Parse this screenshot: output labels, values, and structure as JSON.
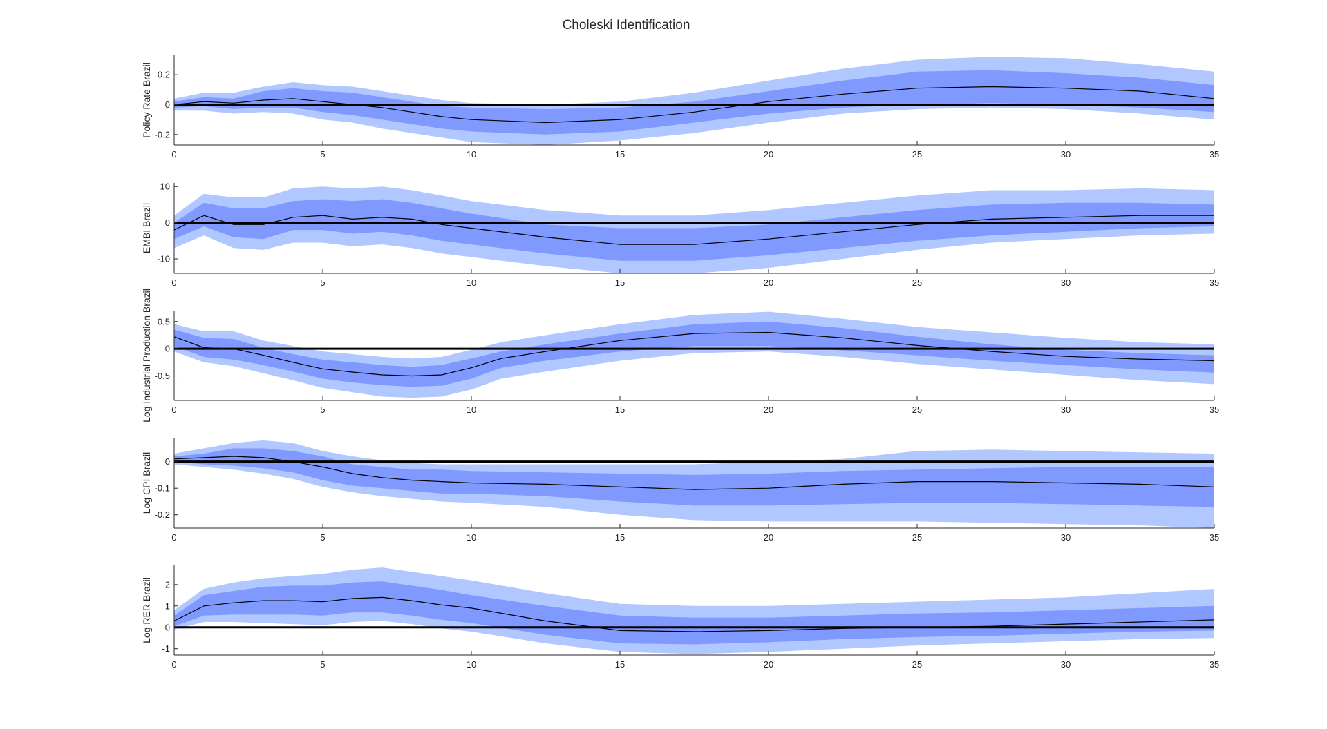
{
  "figure": {
    "title": "Choleski Identification"
  },
  "colors": {
    "band_outer": "#b0c8ff",
    "band_inner": "#7f99ff",
    "median_line": "#000000",
    "zero_line": "#000000",
    "axis": "#262626"
  },
  "chart_data": [
    {
      "type": "area",
      "ylabel": "Policy Rate Brazil",
      "xlim": [
        0,
        35
      ],
      "ylim": [
        -0.27,
        0.33
      ],
      "x_ticks": [
        0,
        5,
        10,
        15,
        20,
        25,
        30,
        35
      ],
      "y_ticks": [
        -0.2,
        0,
        0.2
      ],
      "y_tick_labels": [
        "-0.2",
        "0",
        "0.2"
      ],
      "x": [
        0,
        1,
        2,
        3,
        4,
        5,
        6,
        7,
        8,
        9,
        10,
        12.5,
        15,
        17.5,
        20,
        22.5,
        25,
        27.5,
        30,
        32.5,
        35
      ],
      "series": [
        {
          "role": "outer_upper",
          "values": [
            0.04,
            0.08,
            0.08,
            0.12,
            0.15,
            0.13,
            0.12,
            0.09,
            0.06,
            0.03,
            0.01,
            0.0,
            0.02,
            0.08,
            0.16,
            0.24,
            0.3,
            0.32,
            0.31,
            0.27,
            0.22
          ]
        },
        {
          "role": "inner_upper",
          "values": [
            0.02,
            0.05,
            0.04,
            0.09,
            0.11,
            0.09,
            0.08,
            0.05,
            0.02,
            -0.01,
            -0.02,
            -0.03,
            -0.02,
            0.02,
            0.09,
            0.16,
            0.22,
            0.23,
            0.21,
            0.18,
            0.13
          ]
        },
        {
          "role": "median",
          "values": [
            0.0,
            0.02,
            0.01,
            0.03,
            0.04,
            0.02,
            0.0,
            -0.02,
            -0.05,
            -0.08,
            -0.1,
            -0.12,
            -0.1,
            -0.05,
            0.02,
            0.07,
            0.11,
            0.12,
            0.11,
            0.09,
            0.04
          ]
        },
        {
          "role": "inner_lower",
          "values": [
            -0.02,
            -0.01,
            -0.03,
            -0.02,
            -0.02,
            -0.05,
            -0.07,
            -0.1,
            -0.13,
            -0.16,
            -0.18,
            -0.2,
            -0.18,
            -0.12,
            -0.06,
            -0.02,
            0.0,
            0.01,
            0.0,
            -0.02,
            -0.05
          ]
        },
        {
          "role": "outer_lower",
          "values": [
            -0.04,
            -0.04,
            -0.06,
            -0.05,
            -0.06,
            -0.1,
            -0.12,
            -0.16,
            -0.19,
            -0.22,
            -0.25,
            -0.27,
            -0.24,
            -0.19,
            -0.12,
            -0.06,
            -0.03,
            -0.02,
            -0.03,
            -0.06,
            -0.1
          ]
        }
      ]
    },
    {
      "type": "area",
      "ylabel": "EMBI Brazil",
      "xlim": [
        0,
        35
      ],
      "ylim": [
        -14,
        11
      ],
      "x_ticks": [
        0,
        5,
        10,
        15,
        20,
        25,
        30,
        35
      ],
      "y_ticks": [
        -10,
        0,
        10
      ],
      "y_tick_labels": [
        "-10",
        "0",
        "10"
      ],
      "x": [
        0,
        1,
        2,
        3,
        4,
        5,
        6,
        7,
        8,
        9,
        10,
        12.5,
        15,
        17.5,
        20,
        22.5,
        25,
        27.5,
        30,
        32.5,
        35
      ],
      "series": [
        {
          "role": "outer_upper",
          "values": [
            2.0,
            8.0,
            7.0,
            7.0,
            9.5,
            10.0,
            9.5,
            10.0,
            9.0,
            7.5,
            6.0,
            3.5,
            2.0,
            2.0,
            3.5,
            5.5,
            7.5,
            9.0,
            9.0,
            9.5,
            9.0
          ]
        },
        {
          "role": "inner_upper",
          "values": [
            0.0,
            5.5,
            4.0,
            4.0,
            6.0,
            6.5,
            6.0,
            6.5,
            5.5,
            4.0,
            2.5,
            -0.5,
            -1.5,
            -1.5,
            -0.5,
            1.5,
            3.5,
            5.0,
            5.5,
            5.5,
            5.0
          ]
        },
        {
          "role": "median",
          "values": [
            -2.0,
            2.0,
            -0.5,
            -0.5,
            1.5,
            2.0,
            1.0,
            1.5,
            1.0,
            -0.5,
            -1.5,
            -4.0,
            -6.0,
            -6.0,
            -4.5,
            -2.5,
            -0.5,
            1.0,
            1.5,
            2.0,
            2.0
          ]
        },
        {
          "role": "inner_lower",
          "values": [
            -4.5,
            -1.0,
            -4.0,
            -4.5,
            -2.0,
            -2.0,
            -3.0,
            -2.5,
            -3.5,
            -5.0,
            -6.0,
            -8.5,
            -10.5,
            -10.5,
            -9.0,
            -7.0,
            -5.0,
            -3.5,
            -2.5,
            -1.5,
            -1.0
          ]
        },
        {
          "role": "outer_lower",
          "values": [
            -7.0,
            -3.5,
            -7.0,
            -7.5,
            -5.5,
            -5.5,
            -6.5,
            -6.0,
            -7.0,
            -8.5,
            -9.5,
            -12.0,
            -14.0,
            -14.0,
            -12.5,
            -10.0,
            -7.5,
            -5.5,
            -4.5,
            -3.5,
            -3.0
          ]
        }
      ]
    },
    {
      "type": "area",
      "ylabel": "Log Industrial Production Brazil",
      "xlim": [
        0,
        35
      ],
      "ylim": [
        -0.95,
        0.7
      ],
      "x_ticks": [
        0,
        5,
        10,
        15,
        20,
        25,
        30,
        35
      ],
      "y_ticks": [
        -0.5,
        0,
        0.5
      ],
      "y_tick_labels": [
        "-0.5",
        "0",
        "0.5"
      ],
      "x": [
        0,
        1,
        2,
        3,
        4,
        5,
        6,
        7,
        8,
        9,
        10,
        11,
        12.5,
        15,
        17.5,
        20,
        22.5,
        25,
        27.5,
        30,
        32.5,
        35
      ],
      "series": [
        {
          "role": "outer_upper",
          "values": [
            0.45,
            0.32,
            0.32,
            0.15,
            0.05,
            -0.05,
            -0.1,
            -0.15,
            -0.18,
            -0.15,
            -0.02,
            0.12,
            0.25,
            0.45,
            0.62,
            0.68,
            0.55,
            0.4,
            0.3,
            0.2,
            0.12,
            0.08
          ]
        },
        {
          "role": "inner_upper",
          "values": [
            0.35,
            0.2,
            0.18,
            0.02,
            -0.1,
            -0.2,
            -0.25,
            -0.3,
            -0.33,
            -0.3,
            -0.18,
            -0.05,
            0.08,
            0.28,
            0.45,
            0.5,
            0.38,
            0.22,
            0.08,
            -0.02,
            -0.08,
            -0.12
          ]
        },
        {
          "role": "median",
          "values": [
            0.22,
            0.02,
            0.0,
            -0.12,
            -0.25,
            -0.37,
            -0.43,
            -0.48,
            -0.5,
            -0.48,
            -0.35,
            -0.18,
            -0.05,
            0.15,
            0.28,
            0.3,
            0.2,
            0.06,
            -0.05,
            -0.14,
            -0.19,
            -0.22
          ]
        },
        {
          "role": "inner_lower",
          "values": [
            0.05,
            -0.15,
            -0.2,
            -0.3,
            -0.42,
            -0.55,
            -0.62,
            -0.67,
            -0.7,
            -0.68,
            -0.55,
            -0.35,
            -0.22,
            -0.05,
            0.05,
            0.05,
            -0.03,
            -0.12,
            -0.22,
            -0.3,
            -0.38,
            -0.44
          ]
        },
        {
          "role": "outer_lower",
          "values": [
            -0.05,
            -0.25,
            -0.32,
            -0.45,
            -0.58,
            -0.72,
            -0.8,
            -0.88,
            -0.9,
            -0.88,
            -0.75,
            -0.55,
            -0.42,
            -0.22,
            -0.08,
            -0.05,
            -0.15,
            -0.28,
            -0.38,
            -0.48,
            -0.58,
            -0.65
          ]
        }
      ]
    },
    {
      "type": "area",
      "ylabel": "Log CPI Brazil",
      "xlim": [
        0,
        35
      ],
      "ylim": [
        -0.25,
        0.09
      ],
      "x_ticks": [
        0,
        5,
        10,
        15,
        20,
        25,
        30,
        35
      ],
      "y_ticks": [
        -0.2,
        -0.1,
        0
      ],
      "y_tick_labels": [
        "-0.2",
        "-0.1",
        "0"
      ],
      "x": [
        0,
        1,
        2,
        3,
        4,
        5,
        6,
        7,
        8,
        9,
        10,
        12.5,
        15,
        17.5,
        20,
        22.5,
        25,
        27.5,
        30,
        32.5,
        35
      ],
      "series": [
        {
          "role": "outer_upper",
          "values": [
            0.03,
            0.05,
            0.07,
            0.08,
            0.07,
            0.04,
            0.02,
            0.005,
            -0.005,
            -0.01,
            -0.01,
            -0.01,
            -0.01,
            -0.01,
            0.0,
            0.01,
            0.04,
            0.045,
            0.04,
            0.035,
            0.03
          ]
        },
        {
          "role": "inner_upper",
          "values": [
            0.02,
            0.03,
            0.05,
            0.05,
            0.04,
            0.02,
            -0.01,
            -0.02,
            -0.03,
            -0.03,
            -0.035,
            -0.04,
            -0.045,
            -0.05,
            -0.045,
            -0.035,
            -0.03,
            -0.025,
            -0.02,
            -0.02,
            -0.02
          ]
        },
        {
          "role": "median",
          "values": [
            0.01,
            0.015,
            0.02,
            0.015,
            0.0,
            -0.02,
            -0.045,
            -0.06,
            -0.07,
            -0.075,
            -0.08,
            -0.085,
            -0.095,
            -0.105,
            -0.1,
            -0.085,
            -0.075,
            -0.075,
            -0.08,
            -0.085,
            -0.095
          ]
        },
        {
          "role": "inner_lower",
          "values": [
            0.0,
            -0.01,
            -0.015,
            -0.025,
            -0.04,
            -0.07,
            -0.09,
            -0.1,
            -0.11,
            -0.12,
            -0.12,
            -0.13,
            -0.15,
            -0.165,
            -0.165,
            -0.16,
            -0.155,
            -0.155,
            -0.16,
            -0.165,
            -0.17
          ]
        },
        {
          "role": "outer_lower",
          "values": [
            -0.01,
            -0.02,
            -0.03,
            -0.045,
            -0.065,
            -0.095,
            -0.115,
            -0.13,
            -0.14,
            -0.15,
            -0.155,
            -0.17,
            -0.2,
            -0.22,
            -0.225,
            -0.225,
            -0.225,
            -0.23,
            -0.235,
            -0.24,
            -0.25
          ]
        }
      ]
    },
    {
      "type": "area",
      "ylabel": "Log RER Brazil",
      "xlim": [
        0,
        35
      ],
      "ylim": [
        -1.3,
        2.9
      ],
      "x_ticks": [
        0,
        5,
        10,
        15,
        20,
        25,
        30,
        35
      ],
      "y_ticks": [
        -1,
        0,
        1,
        2
      ],
      "y_tick_labels": [
        "-1",
        "0",
        "1",
        "2"
      ],
      "x": [
        0,
        1,
        2,
        3,
        4,
        5,
        6,
        7,
        8,
        9,
        10,
        12.5,
        15,
        17.5,
        20,
        22.5,
        25,
        27.5,
        30,
        32.5,
        35
      ],
      "series": [
        {
          "role": "outer_upper",
          "values": [
            0.8,
            1.8,
            2.1,
            2.3,
            2.4,
            2.5,
            2.7,
            2.8,
            2.6,
            2.4,
            2.2,
            1.6,
            1.1,
            1.0,
            1.0,
            1.1,
            1.2,
            1.3,
            1.4,
            1.6,
            1.8
          ]
        },
        {
          "role": "inner_upper",
          "values": [
            0.55,
            1.5,
            1.7,
            1.9,
            1.95,
            1.95,
            2.1,
            2.15,
            1.95,
            1.75,
            1.5,
            1.0,
            0.55,
            0.45,
            0.45,
            0.55,
            0.65,
            0.7,
            0.8,
            0.9,
            1.0
          ]
        },
        {
          "role": "median",
          "values": [
            0.3,
            1.0,
            1.15,
            1.25,
            1.25,
            1.2,
            1.35,
            1.4,
            1.25,
            1.05,
            0.9,
            0.3,
            -0.15,
            -0.2,
            -0.15,
            -0.05,
            0.0,
            0.05,
            0.15,
            0.25,
            0.35
          ]
        },
        {
          "role": "inner_lower",
          "values": [
            0.05,
            0.55,
            0.6,
            0.6,
            0.6,
            0.55,
            0.7,
            0.7,
            0.55,
            0.35,
            0.2,
            -0.35,
            -0.75,
            -0.8,
            -0.7,
            -0.55,
            -0.45,
            -0.4,
            -0.3,
            -0.2,
            -0.15
          ]
        },
        {
          "role": "outer_lower",
          "values": [
            -0.1,
            0.25,
            0.25,
            0.2,
            0.15,
            0.1,
            0.25,
            0.3,
            0.15,
            -0.05,
            -0.2,
            -0.75,
            -1.15,
            -1.25,
            -1.15,
            -1.0,
            -0.85,
            -0.75,
            -0.65,
            -0.55,
            -0.5
          ]
        }
      ]
    }
  ]
}
